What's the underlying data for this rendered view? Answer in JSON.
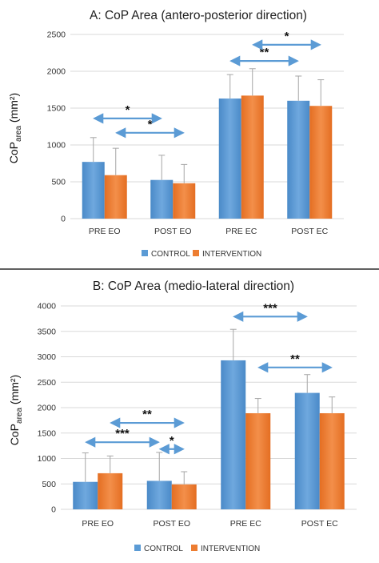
{
  "colors": {
    "control": "#5B9BD5",
    "control_dark": "#3F7FC0",
    "intervention": "#ED7D31",
    "intervention_dark": "#D9631A",
    "arrow": "#5B9BD5",
    "grid": "#D9D9D9",
    "errorbar": "#A6A6A6"
  },
  "legend": {
    "control": "CONTROL",
    "intervention": "INTERVENTION"
  },
  "ylabel": {
    "main": "CoP",
    "sub": "area",
    "unit": " (mm²)"
  },
  "chart_data": [
    {
      "type": "bar",
      "title": "A: CoP Area (antero-posterior direction)",
      "categories": [
        "PRE EO",
        "POST EO",
        "PRE EC",
        "POST EC"
      ],
      "ylim": [
        0,
        2500
      ],
      "yticks": [
        0,
        500,
        1000,
        1500,
        2000,
        2500
      ],
      "grid": true,
      "legend_position": "bottom",
      "series": [
        {
          "name": "CONTROL",
          "values": [
            770,
            525,
            1630,
            1600
          ],
          "errors": [
            330,
            335,
            325,
            335
          ]
        },
        {
          "name": "INTERVENTION",
          "values": [
            590,
            480,
            1670,
            1530
          ],
          "errors": [
            365,
            255,
            365,
            355
          ]
        }
      ],
      "annotations": [
        {
          "label": "*",
          "from": [
            0,
            0
          ],
          "to": [
            1,
            0
          ],
          "level": 1360
        },
        {
          "label": "*",
          "from": [
            0,
            1
          ],
          "to": [
            1,
            1
          ],
          "level": 1165
        },
        {
          "label": "**",
          "from": [
            2,
            0
          ],
          "to": [
            3,
            0
          ],
          "level": 2140
        },
        {
          "label": "*",
          "from": [
            2,
            1
          ],
          "to": [
            3,
            1
          ],
          "level": 2360
        }
      ]
    },
    {
      "type": "bar",
      "title": "B: CoP Area (medio-lateral direction)",
      "categories": [
        "PRE EO",
        "POST EO",
        "PRE EC",
        "POST EC"
      ],
      "ylim": [
        0,
        4000
      ],
      "yticks": [
        0,
        500,
        1000,
        1500,
        2000,
        2500,
        3000,
        3500,
        4000
      ],
      "grid": true,
      "legend_position": "bottom",
      "series": [
        {
          "name": "CONTROL",
          "values": [
            540,
            560,
            2930,
            2290
          ],
          "errors": [
            570,
            560,
            610,
            360
          ]
        },
        {
          "name": "INTERVENTION",
          "values": [
            710,
            490,
            1890,
            1890
          ],
          "errors": [
            340,
            250,
            290,
            320
          ]
        }
      ],
      "annotations": [
        {
          "label": "**",
          "from": [
            0,
            1
          ],
          "to": [
            1,
            1
          ],
          "level": 1700
        },
        {
          "label": "***",
          "from": [
            0,
            0
          ],
          "to": [
            1,
            0
          ],
          "level": 1320
        },
        {
          "label": "*",
          "from": [
            1,
            0
          ],
          "to": [
            1,
            1
          ],
          "level": 1185
        },
        {
          "label": "***",
          "from": [
            2,
            0
          ],
          "to": [
            3,
            0
          ],
          "level": 3790
        },
        {
          "label": "**",
          "from": [
            2,
            1
          ],
          "to": [
            3,
            1
          ],
          "level": 2790
        }
      ]
    }
  ]
}
